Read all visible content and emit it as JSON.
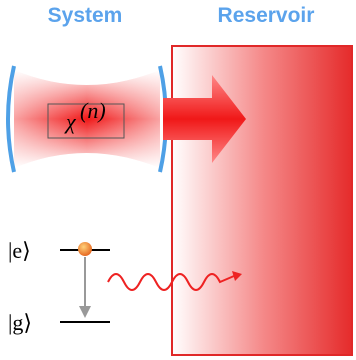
{
  "labels": {
    "system": "System",
    "reservoir": "Reservoir"
  },
  "cavity": {
    "symbol": "χ",
    "superscript": "(n)"
  },
  "atom": {
    "excited": "|e⟩",
    "ground": "|g⟩"
  }
}
